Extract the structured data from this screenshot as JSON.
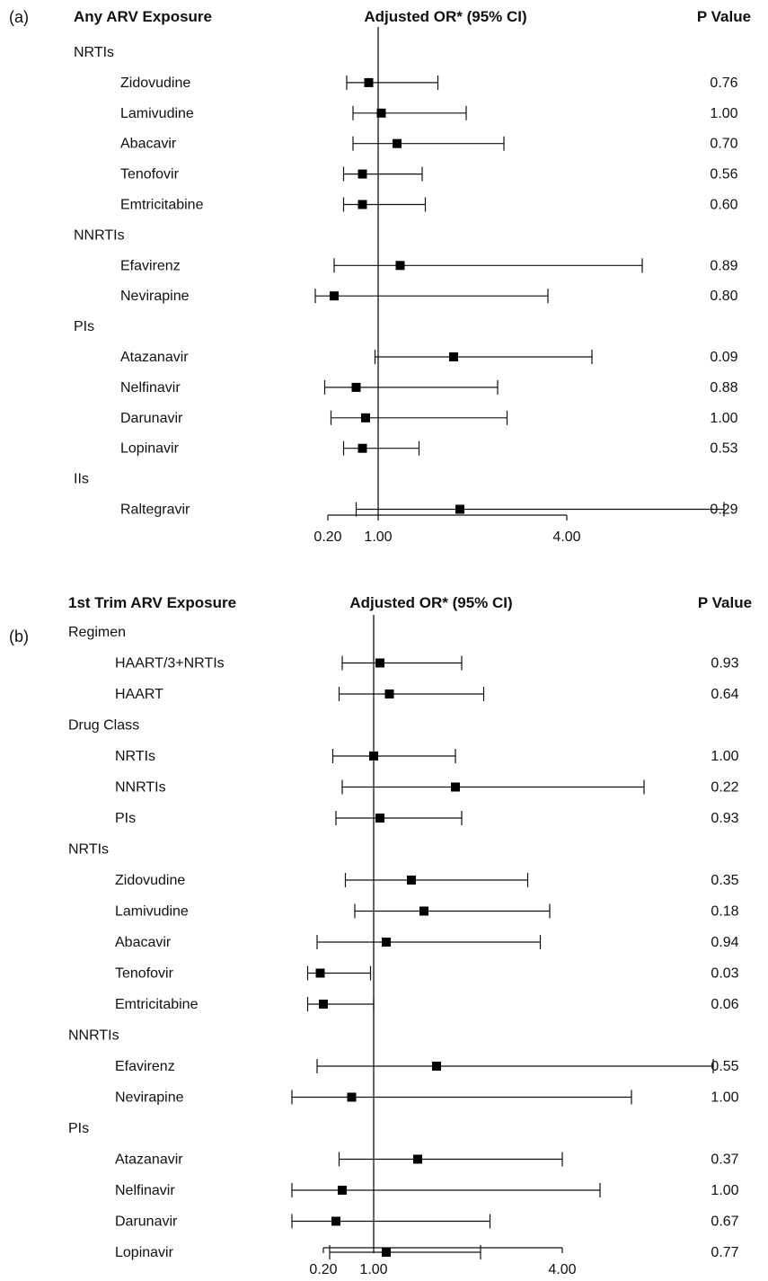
{
  "chart_data": [
    {
      "type": "forest",
      "panel_label": "(a)",
      "row_header": "Any ARV Exposure",
      "estimate_header": "Adjusted OR* (95% CI)",
      "pvalue_header": "P Value",
      "x_ticks": [
        "0.20",
        "1.00",
        "4.00"
      ],
      "x_tick_values": [
        0.2,
        1.0,
        4.0
      ],
      "reference_value": 1.0,
      "groups": [
        {
          "name": "NRTIs",
          "rows": [
            {
              "label": "Zidovudine",
              "or": 0.85,
              "ci": [
                0.5,
                1.95
              ],
              "p": "0.76"
            },
            {
              "label": "Lamivudine",
              "or": 1.05,
              "ci": [
                0.6,
                2.4
              ],
              "p": "1.00"
            },
            {
              "label": "Abacavir",
              "or": 1.3,
              "ci": [
                0.6,
                3.0
              ],
              "p": "0.70"
            },
            {
              "label": "Tenofovir",
              "or": 0.75,
              "ci": [
                0.45,
                1.7
              ],
              "p": "0.56"
            },
            {
              "label": "Emtricitabine",
              "or": 0.75,
              "ci": [
                0.45,
                1.75
              ],
              "p": "0.60"
            }
          ]
        },
        {
          "name": "NNRTIs",
          "rows": [
            {
              "label": "Efavirenz",
              "or": 1.35,
              "ci": [
                0.3,
                5.2
              ],
              "p": "0.89"
            },
            {
              "label": "Nevirapine",
              "or": 0.3,
              "ci": [
                0.0,
                3.7
              ],
              "p": "0.80"
            }
          ]
        },
        {
          "name": "PIs",
          "rows": [
            {
              "label": "Atazanavir",
              "or": 2.2,
              "ci": [
                0.95,
                4.4
              ],
              "p": "0.09"
            },
            {
              "label": "Nelfinavir",
              "or": 0.65,
              "ci": [
                0.15,
                2.9
              ],
              "p": "0.88"
            },
            {
              "label": "Darunavir",
              "or": 0.8,
              "ci": [
                0.25,
                3.05
              ],
              "p": "1.00"
            },
            {
              "label": "Lopinavir",
              "or": 0.75,
              "ci": [
                0.45,
                1.65
              ],
              "p": "0.53"
            }
          ]
        },
        {
          "name": "IIs",
          "rows": [
            {
              "label": "Raltegravir",
              "or": 2.3,
              "ci": [
                0.65,
                6.5
              ],
              "p": "0.29"
            }
          ]
        }
      ]
    },
    {
      "type": "forest",
      "panel_label": "(b)",
      "row_header": "1st Trim ARV Exposure",
      "estimate_header": "Adjusted OR* (95% CI)",
      "pvalue_header": "P Value",
      "x_ticks": [
        "0.20",
        "1.00",
        "4.00"
      ],
      "x_tick_values": [
        0.2,
        1.0,
        4.0
      ],
      "reference_value": 1.0,
      "groups": [
        {
          "name": "Regimen",
          "rows": [
            {
              "label": "HAART/3+NRTIs",
              "or": 1.1,
              "ci": [
                0.5,
                2.4
              ],
              "p": "0.93"
            },
            {
              "label": "HAART",
              "or": 1.25,
              "ci": [
                0.45,
                2.75
              ],
              "p": "0.64"
            }
          ]
        },
        {
          "name": "Drug Class",
          "rows": [
            {
              "label": "NRTIs",
              "or": 1.0,
              "ci": [
                0.35,
                2.3
              ],
              "p": "1.00"
            },
            {
              "label": "NNRTIs",
              "or": 2.3,
              "ci": [
                0.5,
                5.3
              ],
              "p": "0.22"
            },
            {
              "label": "PIs",
              "or": 1.1,
              "ci": [
                0.4,
                2.4
              ],
              "p": "0.93"
            }
          ]
        },
        {
          "name": "NRTIs",
          "rows": [
            {
              "label": "Zidovudine",
              "or": 1.6,
              "ci": [
                0.55,
                3.45
              ],
              "p": "0.35"
            },
            {
              "label": "Lamivudine",
              "or": 1.8,
              "ci": [
                0.7,
                3.8
              ],
              "p": "0.18"
            },
            {
              "label": "Abacavir",
              "or": 1.2,
              "ci": [
                0.1,
                3.65
              ],
              "p": "0.94"
            },
            {
              "label": "Tenofovir",
              "or": 0.15,
              "ci": [
                -0.05,
                0.95
              ],
              "p": "0.03"
            },
            {
              "label": "Emtricitabine",
              "or": 0.2,
              "ci": [
                -0.05,
                1.0
              ],
              "p": "0.06"
            }
          ]
        },
        {
          "name": "NNRTIs",
          "rows": [
            {
              "label": "Efavirenz",
              "or": 2.0,
              "ci": [
                0.1,
                6.4
              ],
              "p": "0.55"
            },
            {
              "label": "Nevirapine",
              "or": 0.65,
              "ci": [
                -0.3,
                5.1
              ],
              "p": "1.00"
            }
          ]
        },
        {
          "name": "PIs",
          "rows": [
            {
              "label": "Atazanavir",
              "or": 1.7,
              "ci": [
                0.45,
                4.0
              ],
              "p": "0.37"
            },
            {
              "label": "Nelfinavir",
              "or": 0.5,
              "ci": [
                -0.3,
                4.6
              ],
              "p": "1.00"
            },
            {
              "label": "Darunavir",
              "or": 0.4,
              "ci": [
                -0.3,
                2.85
              ],
              "p": "0.67"
            },
            {
              "label": "Lopinavir",
              "or": 1.2,
              "ci": [
                0.3,
                2.7
              ],
              "p": "0.77"
            }
          ]
        }
      ]
    }
  ]
}
